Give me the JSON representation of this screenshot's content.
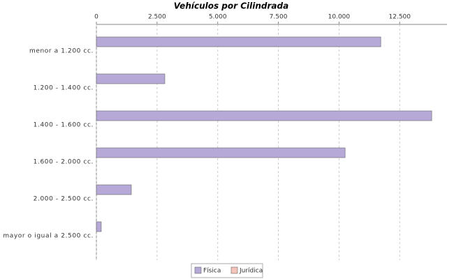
{
  "chart_data": {
    "type": "bar",
    "orientation": "horizontal",
    "title": "Vehículos por Cilindrada",
    "categories": [
      "menor a 1.200 cc.",
      "1.200 - 1.400 cc.",
      "1.400 - 1.600 cc.",
      "1.600 - 2.000 cc.",
      "2.000 - 2.500 cc.",
      "mayor o igual a 2.500 cc."
    ],
    "series": [
      {
        "name": "Física",
        "color": "#b6a9d7",
        "values": [
          11720,
          2820,
          13820,
          10250,
          1440,
          200
        ]
      },
      {
        "name": "Jurídica",
        "color": "#f4c3ba",
        "values": [
          0,
          0,
          0,
          0,
          0,
          0
        ]
      }
    ],
    "xlim": [
      0,
      14450
    ],
    "xticks": [
      0,
      {
        "value": 2500,
        "label": "2.500"
      },
      {
        "value": 5000,
        "label": "5.000"
      },
      {
        "value": 7500,
        "label": "7.500"
      },
      {
        "value": 10000,
        "label": "10.000"
      },
      {
        "value": 12500,
        "label": "12.500"
      }
    ],
    "grid": true
  }
}
